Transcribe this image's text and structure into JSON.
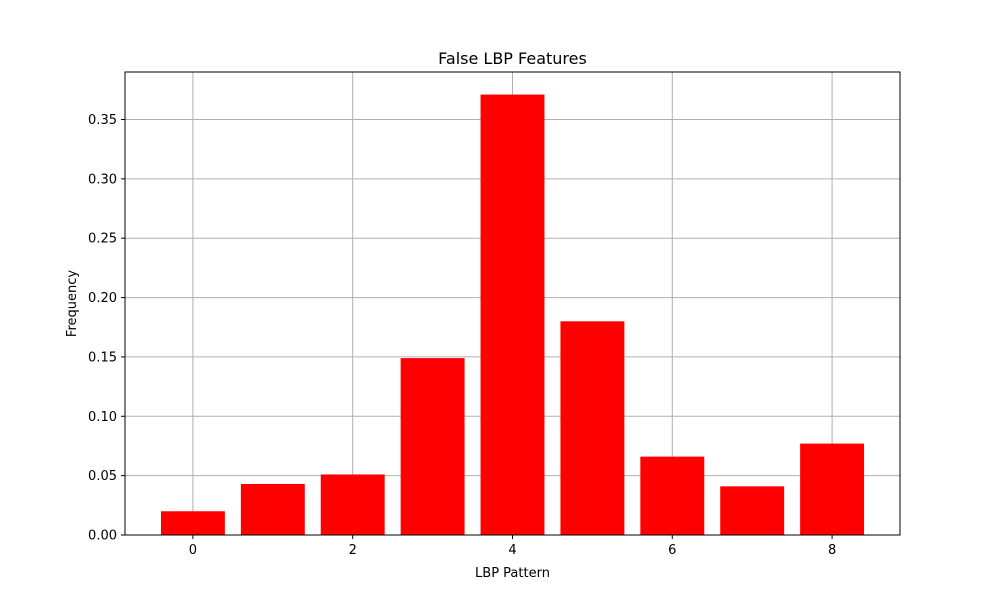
{
  "chart_data": {
    "type": "bar",
    "title": "False LBP Features",
    "xlabel": "LBP Pattern",
    "ylabel": "Frequency",
    "categories": [
      0,
      1,
      2,
      3,
      4,
      5,
      6,
      7,
      8
    ],
    "values": [
      0.02,
      0.043,
      0.051,
      0.149,
      0.371,
      0.18,
      0.066,
      0.041,
      0.077
    ],
    "xlim": [
      -0.85,
      8.85
    ],
    "ylim": [
      0,
      0.39
    ],
    "xticks": [
      0,
      2,
      4,
      6,
      8
    ],
    "xtick_labels": [
      "0",
      "2",
      "4",
      "6",
      "8"
    ],
    "yticks": [
      0.0,
      0.05,
      0.1,
      0.15,
      0.2,
      0.25,
      0.3,
      0.35
    ],
    "ytick_labels": [
      "0.00",
      "0.05",
      "0.10",
      "0.15",
      "0.20",
      "0.25",
      "0.30",
      "0.35"
    ],
    "grid": true,
    "bar_color": "#ff0000",
    "grid_color": "#b0b0b0"
  }
}
